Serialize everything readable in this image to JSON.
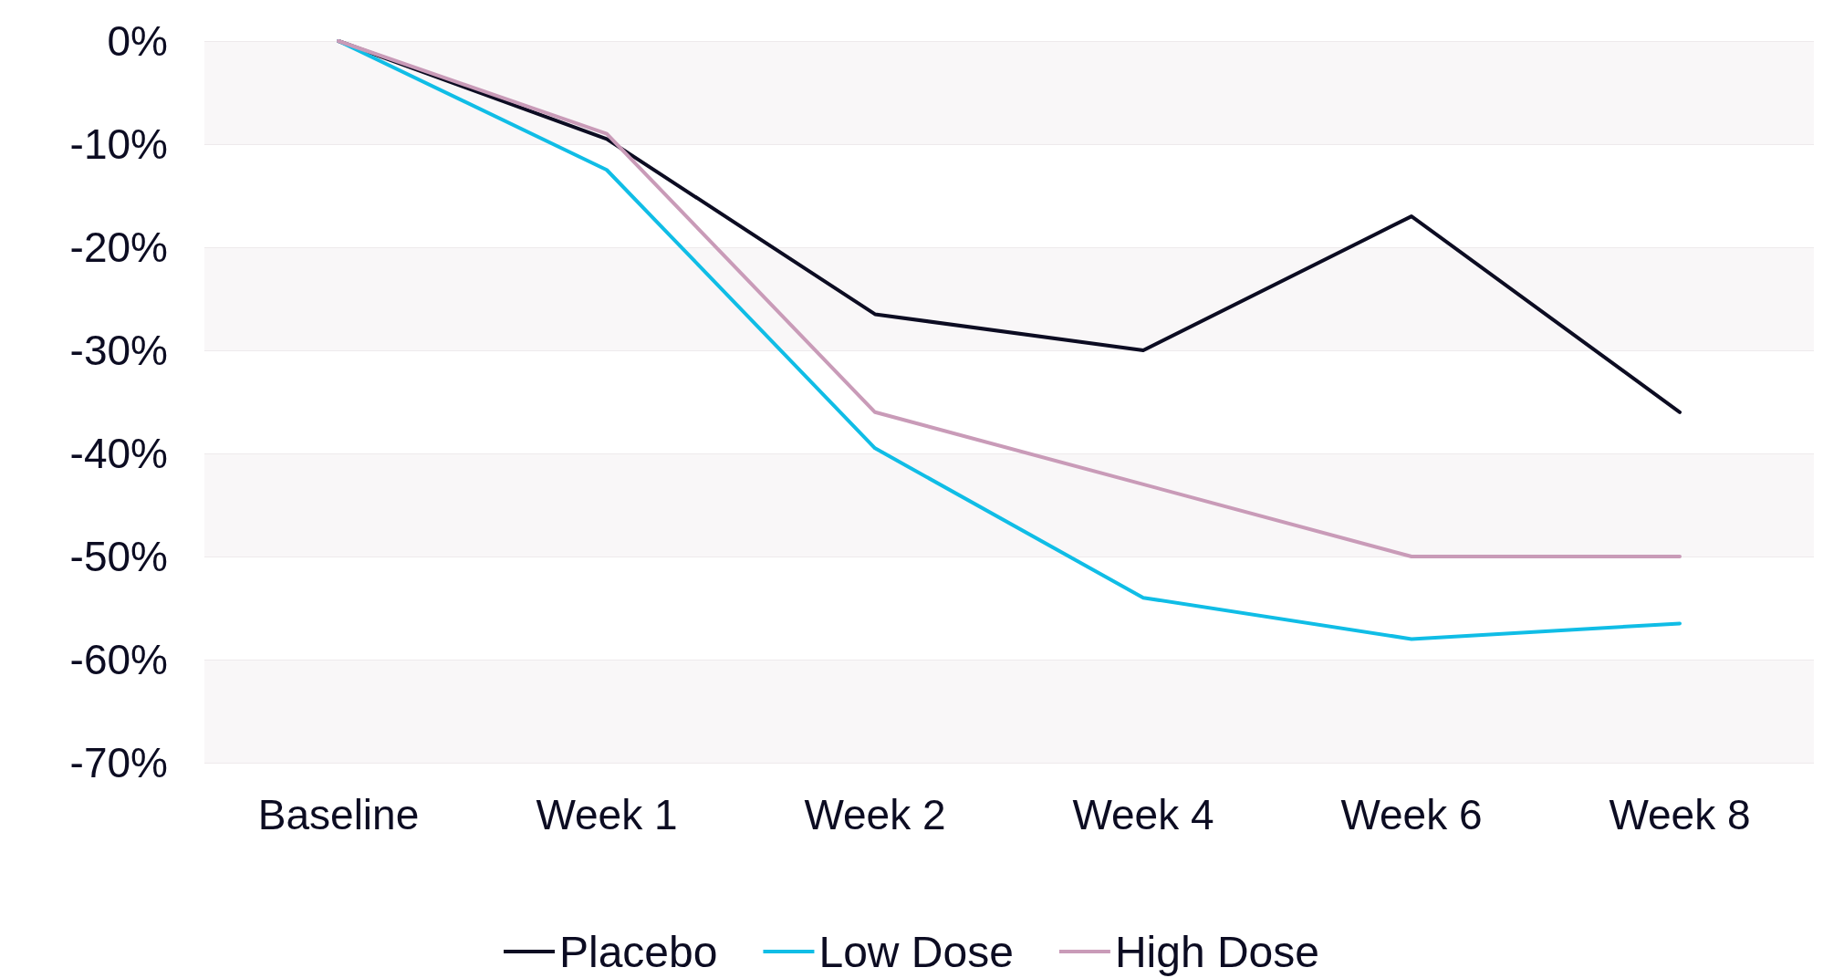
{
  "chart_data": {
    "type": "line",
    "categories": [
      "Baseline",
      "Week 1",
      "Week 2",
      "Week 4",
      "Week 6",
      "Week 8"
    ],
    "series": [
      {
        "name": "Placebo",
        "color": "#0c0c22",
        "values": [
          0,
          -9.5,
          -26.5,
          -30,
          -17,
          -36
        ]
      },
      {
        "name": "Low Dose",
        "color": "#10bde6",
        "values": [
          0,
          -12.5,
          -39.5,
          -54,
          -58,
          -56.5
        ]
      },
      {
        "name": "High Dose",
        "color": "#c99bb8",
        "values": [
          0,
          -9,
          -36,
          -43,
          -50,
          -50
        ]
      }
    ],
    "ylim": [
      -70,
      0
    ],
    "yticks": [
      {
        "value": -70,
        "label": "-70%"
      },
      {
        "value": -60,
        "label": "-60%"
      },
      {
        "value": -50,
        "label": "-50%"
      },
      {
        "value": -40,
        "label": "-40%"
      },
      {
        "value": -30,
        "label": "-30%"
      },
      {
        "value": -20,
        "label": "-20%"
      },
      {
        "value": -10,
        "label": "-10%"
      },
      {
        "value": 0,
        "label": "0%"
      }
    ],
    "grid": "y",
    "legend": "bottom",
    "marker": "none",
    "line_style": "solid"
  }
}
